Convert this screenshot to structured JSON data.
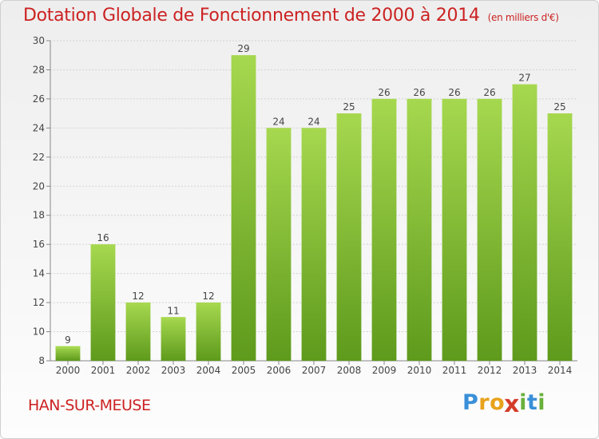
{
  "header": {
    "title": "Dotation Globale de Fonctionnement de 2000 à 2014",
    "unit": "(en milliers d'€)"
  },
  "footer": {
    "place": "HAN-SUR-MEUSE",
    "logo": {
      "letters": [
        "P",
        "r",
        "o",
        "x",
        "i",
        "t",
        "i"
      ],
      "colors": [
        "#3a8fd8",
        "#e8a21c",
        "#e8a21c",
        "#d43c2a",
        "#6ab03c",
        "#3a8fd8",
        "#6ab03c"
      ]
    }
  },
  "chart_data": {
    "type": "bar",
    "categories": [
      "2000",
      "2001",
      "2002",
      "2003",
      "2004",
      "2005",
      "2006",
      "2007",
      "2008",
      "2009",
      "2010",
      "2011",
      "2012",
      "2013",
      "2014"
    ],
    "values": [
      9,
      16,
      12,
      11,
      12,
      29,
      24,
      24,
      25,
      26,
      26,
      26,
      26,
      27,
      25
    ],
    "ylim": [
      8,
      30
    ],
    "yticks": [
      8,
      10,
      12,
      14,
      16,
      18,
      20,
      22,
      24,
      26,
      28,
      30
    ],
    "grid": true,
    "bar_color": "#7bbd2f",
    "bar_color_light": "#a6d84f",
    "bar_color_dark": "#5e9a1c"
  }
}
